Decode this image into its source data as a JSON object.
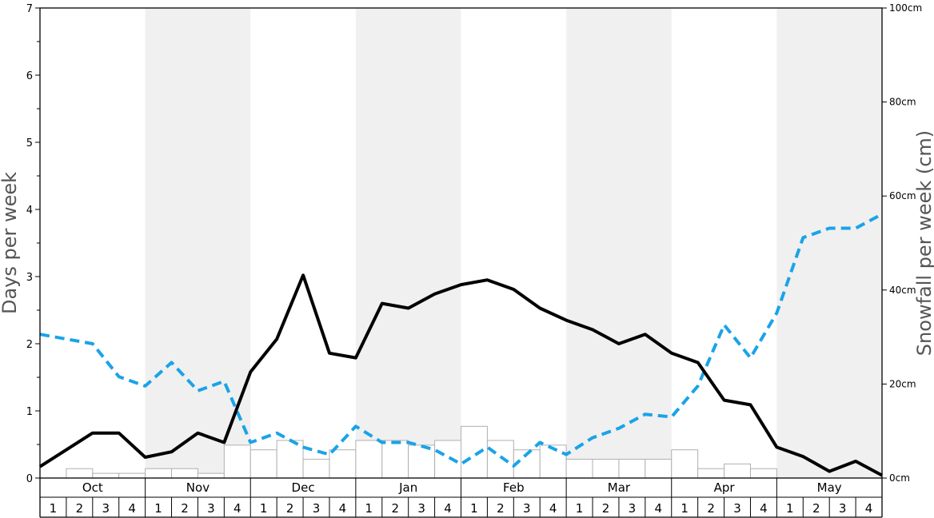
{
  "chart_data": {
    "type": "bar+line",
    "months": [
      "Oct",
      "Nov",
      "Dec",
      "Jan",
      "Feb",
      "Mar",
      "Apr",
      "May"
    ],
    "week_labels": [
      "1",
      "2",
      "3",
      "4"
    ],
    "y_left": {
      "label": "Days per week",
      "min": 0,
      "max": 7,
      "ticks": [
        "0",
        "1",
        "2",
        "3",
        "4",
        "5",
        "6",
        "7"
      ]
    },
    "y_right": {
      "label": "Snowfall per week (cm)",
      "min": 0,
      "max": 100,
      "ticks": [
        "0cm",
        "20cm",
        "40cm",
        "60cm",
        "80cm",
        "100cm"
      ]
    },
    "snowfall_bars_cm": [
      0,
      2,
      1,
      1,
      2,
      2,
      1,
      7,
      6,
      8,
      4,
      6,
      8,
      8,
      7,
      8,
      11,
      8,
      6,
      7,
      4,
      4,
      4,
      4,
      6,
      2,
      3,
      2,
      0,
      0,
      0,
      0
    ],
    "solid_line_days": [
      0.17,
      0.42,
      0.67,
      0.67,
      0.31,
      0.39,
      0.67,
      0.53,
      1.58,
      2.07,
      3.02,
      1.86,
      1.79,
      2.6,
      2.53,
      2.74,
      2.88,
      2.95,
      2.81,
      2.53,
      2.35,
      2.21,
      2.0,
      2.14,
      1.86,
      1.72,
      1.16,
      1.09,
      0.46,
      0.32,
      0.1,
      0.25,
      0.04
    ],
    "dashed_line_days": [
      2.14,
      2.07,
      2.0,
      1.51,
      1.37,
      1.72,
      1.3,
      1.44,
      0.53,
      0.67,
      0.46,
      0.35,
      0.77,
      0.53,
      0.53,
      0.42,
      0.21,
      0.46,
      0.18,
      0.53,
      0.35,
      0.6,
      0.74,
      0.95,
      0.91,
      1.37,
      2.28,
      1.79,
      2.46,
      3.58,
      3.72,
      3.72,
      3.93
    ],
    "colors": {
      "solid_line": "#000000",
      "dashed_line": "#1aa3e8",
      "band_shade": "#f0f0f0",
      "bar_fill": "#ffffff",
      "bar_stroke": "#b0b0b0"
    }
  }
}
